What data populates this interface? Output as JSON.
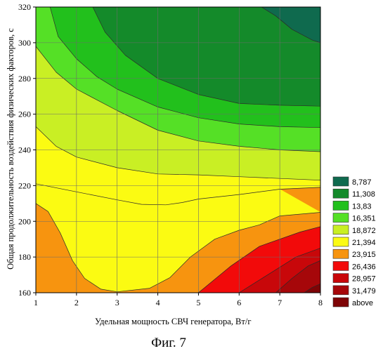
{
  "chart_data": {
    "type": "contour",
    "xlabel": "Удельная мощность СВЧ генератора, Вт/г",
    "ylabel": "Общая продолжительность воздействия физических факторов, с",
    "xlim": [
      1,
      8
    ],
    "ylim": [
      160,
      320
    ],
    "x_ticks": [
      "1",
      "2",
      "3",
      "4",
      "5",
      "6",
      "7",
      "8"
    ],
    "y_ticks": [
      "160",
      "180",
      "200",
      "220",
      "240",
      "260",
      "280",
      "300",
      "320"
    ],
    "grid": true,
    "legend_position": "right",
    "levels": [
      {
        "label": "8,787",
        "color": "#0f6a4e"
      },
      {
        "label": "11,308",
        "color": "#148a2a"
      },
      {
        "label": "13,83",
        "color": "#22c01c"
      },
      {
        "label": "16,351",
        "color": "#55e026"
      },
      {
        "label": "18,872",
        "color": "#c9ef24"
      },
      {
        "label": "21,394",
        "color": "#fbfb12"
      },
      {
        "label": "23,915",
        "color": "#f7940f"
      },
      {
        "label": "26,436",
        "color": "#f20a0a"
      },
      {
        "label": "28,957",
        "color": "#c8070a"
      },
      {
        "label": "31,479",
        "color": "#a6070a"
      },
      {
        "label": "above",
        "color": "#7e0406"
      }
    ],
    "contour_lines": [
      {
        "level": "8,787",
        "points": [
          [
            6.55,
            320
          ],
          [
            6.9,
            315
          ],
          [
            7.3,
            307.5
          ],
          [
            7.8,
            301.5
          ],
          [
            8,
            300
          ]
        ]
      },
      {
        "level": "11,308",
        "points": [
          [
            2.4,
            320
          ],
          [
            2.7,
            306
          ],
          [
            3.2,
            293
          ],
          [
            4.0,
            280
          ],
          [
            5.0,
            271
          ],
          [
            6.0,
            266
          ],
          [
            7.0,
            265
          ],
          [
            8,
            264.5
          ]
        ]
      },
      {
        "level": "13,83",
        "points": [
          [
            1.35,
            320
          ],
          [
            1.55,
            303.5
          ],
          [
            2.0,
            291
          ],
          [
            2.5,
            281
          ],
          [
            3.0,
            274
          ],
          [
            4.0,
            264
          ],
          [
            5.0,
            258
          ],
          [
            6.0,
            254.5
          ],
          [
            7.0,
            253
          ],
          [
            8,
            252.5
          ]
        ]
      },
      {
        "level": "16,351",
        "points": [
          [
            1,
            298
          ],
          [
            1.5,
            283.5
          ],
          [
            2.0,
            274
          ],
          [
            3.0,
            262
          ],
          [
            4.0,
            251
          ],
          [
            5.0,
            245
          ],
          [
            6.0,
            242
          ],
          [
            7.0,
            240
          ],
          [
            8,
            239
          ]
        ]
      },
      {
        "level": "18,872",
        "points": [
          [
            1,
            253
          ],
          [
            1.5,
            242
          ],
          [
            2.0,
            236
          ],
          [
            3.0,
            230
          ],
          [
            4.0,
            226.5
          ],
          [
            5.0,
            226
          ],
          [
            6.0,
            225
          ],
          [
            7.0,
            224
          ],
          [
            8,
            223
          ]
        ]
      },
      {
        "level": "21,394",
        "points": [
          [
            1,
            210
          ],
          [
            1.3,
            205.5
          ],
          [
            1.6,
            193.5
          ],
          [
            1.9,
            178
          ],
          [
            2.2,
            168
          ],
          [
            2.6,
            162
          ],
          [
            3.0,
            160.5
          ],
          [
            3.8,
            162.5
          ],
          [
            4.3,
            168.5
          ],
          [
            4.8,
            180
          ],
          [
            5.4,
            190
          ],
          [
            6.0,
            195
          ],
          [
            6.5,
            198
          ],
          [
            7.0,
            203
          ],
          [
            8,
            205
          ]
        ]
      },
      {
        "level": "23,915",
        "points": [
          [
            5.0,
            160
          ],
          [
            5.8,
            175
          ],
          [
            6.5,
            186
          ],
          [
            7.5,
            194
          ],
          [
            8,
            197
          ]
        ]
      },
      {
        "level": "26,436",
        "points": [
          [
            6.0,
            160
          ],
          [
            6.7,
            170
          ],
          [
            7.4,
            180
          ],
          [
            8,
            185
          ]
        ]
      },
      {
        "level": "28,957",
        "points": [
          [
            6.9,
            160
          ],
          [
            7.3,
            168
          ],
          [
            7.7,
            175
          ],
          [
            8,
            178
          ]
        ]
      },
      {
        "level": "31,479",
        "points": [
          [
            7.6,
            160
          ],
          [
            7.8,
            163
          ],
          [
            8,
            165
          ]
        ]
      }
    ],
    "valley_boundary": [
      [
        1,
        221
      ],
      [
        2,
        216.5
      ],
      [
        3,
        212
      ],
      [
        3.6,
        209.5
      ],
      [
        4.2,
        209.2
      ],
      [
        4.6,
        210.5
      ],
      [
        5,
        212.5
      ],
      [
        6,
        215
      ],
      [
        7,
        218
      ],
      [
        8,
        219
      ]
    ]
  },
  "caption": "Фиг. 7"
}
